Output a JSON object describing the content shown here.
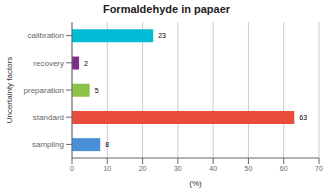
{
  "chart_data": {
    "type": "bar",
    "orientation": "horizontal",
    "title": "Formaldehyde in papaer",
    "categories": [
      "sampling",
      "standard",
      "preparation",
      "recovery",
      "calibration"
    ],
    "values": [
      8,
      63,
      5,
      2,
      23
    ],
    "colors": [
      "#4a90d9",
      "#e74c3c",
      "#8bc34a",
      "#7b2d8b",
      "#00bcd4"
    ],
    "xlabel": "(%)",
    "ylabel": "Uncertainty factors",
    "xlim": [
      0,
      70
    ],
    "xticks": [
      0,
      10,
      20,
      30,
      40,
      50,
      60,
      70
    ],
    "grid": true,
    "data_labels": true
  }
}
